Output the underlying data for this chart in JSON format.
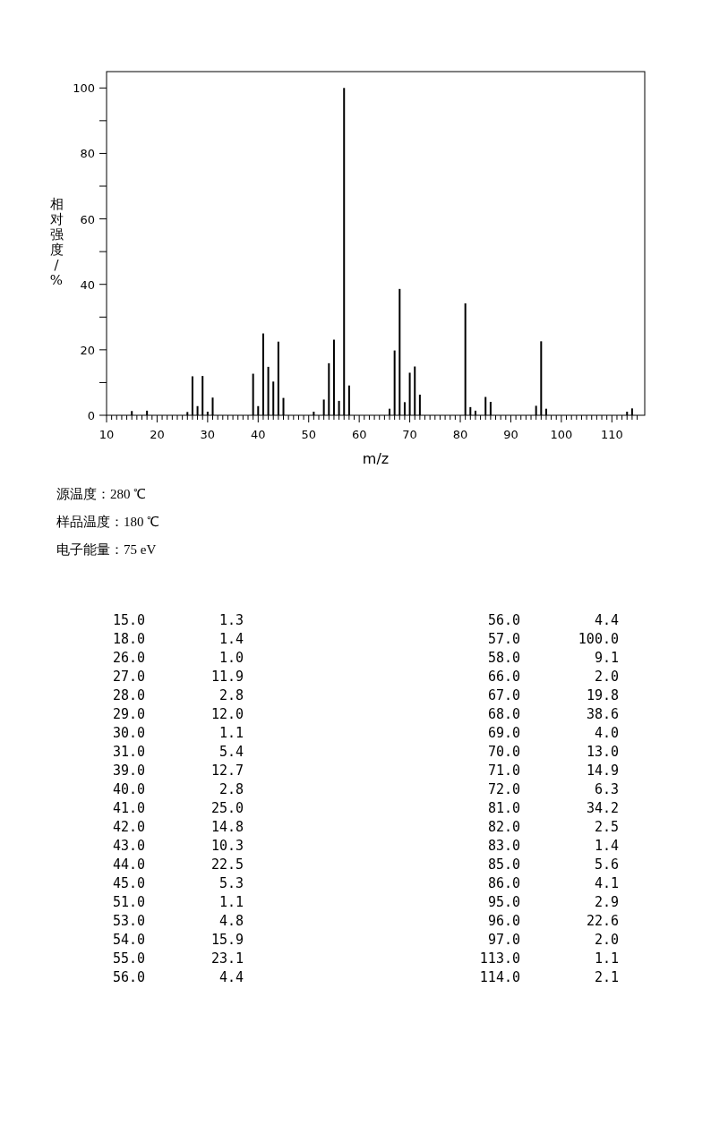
{
  "chart_data": [
    {
      "type": "bar",
      "xlabel": "m/z",
      "ylabel": "相对强度/%",
      "x": [
        15,
        18,
        26,
        27,
        28,
        29,
        30,
        31,
        39,
        40,
        41,
        42,
        43,
        44,
        45,
        51,
        53,
        54,
        55,
        56,
        57,
        58,
        66,
        67,
        68,
        69,
        70,
        71,
        72,
        81,
        82,
        83,
        85,
        86,
        95,
        96,
        97,
        113,
        114
      ],
      "values": [
        1.3,
        1.4,
        1.0,
        11.9,
        2.8,
        12.0,
        1.1,
        5.4,
        12.7,
        2.8,
        25.0,
        14.8,
        10.3,
        22.5,
        5.3,
        1.1,
        4.8,
        15.9,
        23.1,
        4.4,
        100.0,
        9.1,
        2.0,
        19.8,
        38.6,
        4.0,
        13.0,
        14.9,
        6.3,
        34.2,
        2.5,
        1.4,
        5.6,
        4.1,
        2.9,
        22.6,
        2.0,
        1.1,
        2.1
      ],
      "color": "#000000",
      "xlim": [
        10,
        116.5
      ],
      "ylim": [
        0,
        105
      ],
      "xticks": [
        10,
        {
          "value": 11,
          "label": null
        },
        {
          "value": 12,
          "label": null
        },
        {
          "value": 13,
          "label": null
        },
        {
          "value": 14,
          "label": null
        },
        {
          "value": 15,
          "label": null
        },
        {
          "value": 16,
          "label": null
        },
        {
          "value": 17,
          "label": null
        },
        {
          "value": 18,
          "label": null
        },
        {
          "value": 19,
          "label": null
        },
        20,
        {
          "value": 21,
          "label": null
        },
        {
          "value": 22,
          "label": null
        },
        {
          "value": 23,
          "label": null
        },
        {
          "value": 24,
          "label": null
        },
        {
          "value": 25,
          "label": null
        },
        {
          "value": 26,
          "label": null
        },
        {
          "value": 27,
          "label": null
        },
        {
          "value": 28,
          "label": null
        },
        {
          "value": 29,
          "label": null
        },
        30,
        {
          "value": 31,
          "label": null
        },
        {
          "value": 32,
          "label": null
        },
        {
          "value": 33,
          "label": null
        },
        {
          "value": 34,
          "label": null
        },
        {
          "value": 35,
          "label": null
        },
        {
          "value": 36,
          "label": null
        },
        {
          "value": 37,
          "label": null
        },
        {
          "value": 38,
          "label": null
        },
        {
          "value": 39,
          "label": null
        },
        40,
        {
          "value": 41,
          "label": null
        },
        {
          "value": 42,
          "label": null
        },
        {
          "value": 43,
          "label": null
        },
        {
          "value": 44,
          "label": null
        },
        {
          "value": 45,
          "label": null
        },
        {
          "value": 46,
          "label": null
        },
        {
          "value": 47,
          "label": null
        },
        {
          "value": 48,
          "label": null
        },
        {
          "value": 49,
          "label": null
        },
        50,
        {
          "value": 51,
          "label": null
        },
        {
          "value": 52,
          "label": null
        },
        {
          "value": 53,
          "label": null
        },
        {
          "value": 54,
          "label": null
        },
        {
          "value": 55,
          "label": null
        },
        {
          "value": 56,
          "label": null
        },
        {
          "value": 57,
          "label": null
        },
        {
          "value": 58,
          "label": null
        },
        {
          "value": 59,
          "label": null
        },
        60,
        {
          "value": 61,
          "label": null
        },
        {
          "value": 62,
          "label": null
        },
        {
          "value": 63,
          "label": null
        },
        {
          "value": 64,
          "label": null
        },
        {
          "value": 65,
          "label": null
        },
        {
          "value": 66,
          "label": null
        },
        {
          "value": 67,
          "label": null
        },
        {
          "value": 68,
          "label": null
        },
        {
          "value": 69,
          "label": null
        },
        70,
        {
          "value": 71,
          "label": null
        },
        {
          "value": 72,
          "label": null
        },
        {
          "value": 73,
          "label": null
        },
        {
          "value": 74,
          "label": null
        },
        {
          "value": 75,
          "label": null
        },
        {
          "value": 76,
          "label": null
        },
        {
          "value": 77,
          "label": null
        },
        {
          "value": 78,
          "label": null
        },
        {
          "value": 79,
          "label": null
        },
        80,
        {
          "value": 81,
          "label": null
        },
        {
          "value": 82,
          "label": null
        },
        {
          "value": 83,
          "label": null
        },
        {
          "value": 84,
          "label": null
        },
        {
          "value": 85,
          "label": null
        },
        {
          "value": 86,
          "label": null
        },
        {
          "value": 87,
          "label": null
        },
        {
          "value": 88,
          "label": null
        },
        {
          "value": 89,
          "label": null
        },
        90,
        {
          "value": 91,
          "label": null
        },
        {
          "value": 92,
          "label": null
        },
        {
          "value": 93,
          "label": null
        },
        {
          "value": 94,
          "label": null
        },
        {
          "value": 95,
          "label": null
        },
        {
          "value": 96,
          "label": null
        },
        {
          "value": 97,
          "label": null
        },
        {
          "value": 98,
          "label": null
        },
        {
          "value": 99,
          "label": null
        },
        100,
        {
          "value": 101,
          "label": null
        },
        {
          "value": 102,
          "label": null
        },
        {
          "value": 103,
          "label": null
        },
        {
          "value": 104,
          "label": null
        },
        {
          "value": 105,
          "label": null
        },
        {
          "value": 106,
          "label": null
        },
        {
          "value": 107,
          "label": null
        },
        {
          "value": 108,
          "label": null
        },
        {
          "value": 109,
          "label": null
        },
        110,
        {
          "value": 111,
          "label": null
        },
        {
          "value": 112,
          "label": null
        },
        {
          "value": 113,
          "label": null
        },
        {
          "value": 114,
          "label": null
        },
        {
          "value": 115,
          "label": null
        }
      ],
      "yticks": [
        0,
        {
          "value": 10,
          "label": null
        },
        20,
        {
          "value": 30,
          "label": null
        },
        40,
        {
          "value": 50,
          "label": null
        },
        60,
        {
          "value": 70,
          "label": null
        },
        80,
        {
          "value": 90,
          "label": null
        },
        100
      ],
      "grid": false,
      "annotations": [
        "源温度：280 ℃",
        "样品温度：180 ℃",
        "电子能量：75 eV"
      ]
    },
    {
      "type": "other",
      "categories": [
        "15.0",
        "18.0",
        "26.0",
        "27.0",
        "28.0",
        "29.0",
        "30.0",
        "31.0",
        "39.0",
        "40.0",
        "41.0",
        "42.0",
        "43.0",
        "44.0",
        "45.0",
        "51.0",
        "53.0",
        "54.0",
        "55.0",
        "56.0",
        "56.0",
        "57.0",
        "58.0",
        "66.0",
        "67.0",
        "68.0",
        "69.0",
        "70.0",
        "71.0",
        "72.0",
        "81.0",
        "82.0",
        "83.0",
        "85.0",
        "86.0",
        "95.0",
        "96.0",
        "97.0",
        "113.0",
        "114.0"
      ],
      "value_labels": [
        "1.3",
        "1.4",
        "1.0",
        "11.9",
        "2.8",
        "12.0",
        "1.1",
        "5.4",
        "12.7",
        "2.8",
        "25.0",
        "14.8",
        "10.3",
        "22.5",
        "5.3",
        "1.1",
        "4.8",
        "15.9",
        "23.1",
        "4.4",
        "4.4",
        "100.0",
        "9.1",
        "2.0",
        "19.8",
        "38.6",
        "4.0",
        "13.0",
        "14.9",
        "6.3",
        "34.2",
        "2.5",
        "1.4",
        "5.6",
        "4.1",
        "2.9",
        "22.6",
        "2.0",
        "1.1",
        "2.1"
      ]
    }
  ]
}
